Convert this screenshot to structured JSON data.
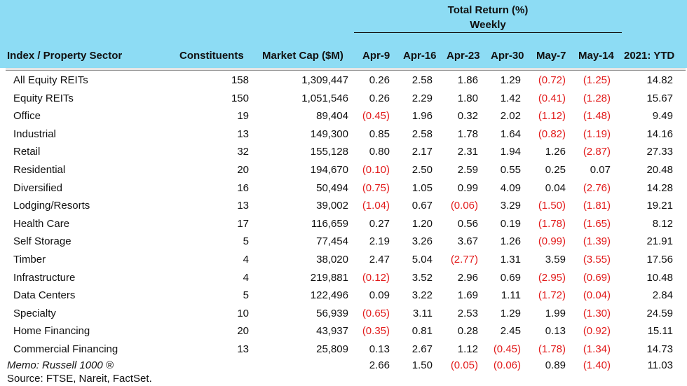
{
  "header": {
    "group_title": "Total Return (%)",
    "group_subtitle": "Weekly",
    "columns": [
      "Index / Property Sector",
      "Constituents",
      "Market Cap ($M)",
      "Apr-9",
      "Apr-16",
      "Apr-23",
      "Apr-30",
      "May-7",
      "May-14",
      "2021: YTD"
    ]
  },
  "rows": [
    {
      "label": "All Equity REITs",
      "constituents": "158",
      "mcap": "1,309,447",
      "v": [
        "0.26",
        "2.58",
        "1.86",
        "1.29",
        "(0.72)",
        "(1.25)",
        "14.82"
      ]
    },
    {
      "label": "Equity REITs",
      "constituents": "150",
      "mcap": "1,051,546",
      "v": [
        "0.26",
        "2.29",
        "1.80",
        "1.42",
        "(0.41)",
        "(1.28)",
        "15.67"
      ]
    },
    {
      "label": "Office",
      "constituents": "19",
      "mcap": "89,404",
      "v": [
        "(0.45)",
        "1.96",
        "0.32",
        "2.02",
        "(1.12)",
        "(1.48)",
        "9.49"
      ]
    },
    {
      "label": "Industrial",
      "constituents": "13",
      "mcap": "149,300",
      "v": [
        "0.85",
        "2.58",
        "1.78",
        "1.64",
        "(0.82)",
        "(1.19)",
        "14.16"
      ]
    },
    {
      "label": "Retail",
      "constituents": "32",
      "mcap": "155,128",
      "v": [
        "0.80",
        "2.17",
        "2.31",
        "1.94",
        "1.26",
        "(2.87)",
        "27.33"
      ]
    },
    {
      "label": "Residential",
      "constituents": "20",
      "mcap": "194,670",
      "v": [
        "(0.10)",
        "2.50",
        "2.59",
        "0.55",
        "0.25",
        "0.07",
        "20.48"
      ]
    },
    {
      "label": "Diversified",
      "constituents": "16",
      "mcap": "50,494",
      "v": [
        "(0.75)",
        "1.05",
        "0.99",
        "4.09",
        "0.04",
        "(2.76)",
        "14.28"
      ]
    },
    {
      "label": "Lodging/Resorts",
      "constituents": "13",
      "mcap": "39,002",
      "v": [
        "(1.04)",
        "0.67",
        "(0.06)",
        "3.29",
        "(1.50)",
        "(1.81)",
        "19.21"
      ]
    },
    {
      "label": "Health Care",
      "constituents": "17",
      "mcap": "116,659",
      "v": [
        "0.27",
        "1.20",
        "0.56",
        "0.19",
        "(1.78)",
        "(1.65)",
        "8.12"
      ]
    },
    {
      "label": "Self Storage",
      "constituents": "5",
      "mcap": "77,454",
      "v": [
        "2.19",
        "3.26",
        "3.67",
        "1.26",
        "(0.99)",
        "(1.39)",
        "21.91"
      ]
    },
    {
      "label": "Timber",
      "constituents": "4",
      "mcap": "38,020",
      "v": [
        "2.47",
        "5.04",
        "(2.77)",
        "1.31",
        "3.59",
        "(3.55)",
        "17.56"
      ]
    },
    {
      "label": "Infrastructure",
      "constituents": "4",
      "mcap": "219,881",
      "v": [
        "(0.12)",
        "3.52",
        "2.96",
        "0.69",
        "(2.95)",
        "(0.69)",
        "10.48"
      ]
    },
    {
      "label": "Data Centers",
      "constituents": "5",
      "mcap": "122,496",
      "v": [
        "0.09",
        "3.22",
        "1.69",
        "1.11",
        "(1.72)",
        "(0.04)",
        "2.84"
      ]
    },
    {
      "label": "Specialty",
      "constituents": "10",
      "mcap": "56,939",
      "v": [
        "(0.65)",
        "3.11",
        "2.53",
        "1.29",
        "1.99",
        "(1.30)",
        "24.59"
      ]
    },
    {
      "label": "Home Financing",
      "constituents": "20",
      "mcap": "43,937",
      "v": [
        "(0.35)",
        "0.81",
        "0.28",
        "2.45",
        "0.13",
        "(0.92)",
        "15.11"
      ]
    },
    {
      "label": "Commercial Financing",
      "constituents": "13",
      "mcap": "25,809",
      "v": [
        "0.13",
        "2.67",
        "1.12",
        "(0.45)",
        "(1.78)",
        "(1.34)",
        "14.73"
      ]
    }
  ],
  "memo": {
    "label": "Memo: Russell 1000 ®",
    "v": [
      "2.66",
      "1.50",
      "(0.05)",
      "(0.06)",
      "0.89",
      "(1.40)",
      "11.03"
    ]
  },
  "source": "Source: FTSE, Nareit, FactSet.",
  "colors": {
    "header_bg": "#8ddcf4",
    "negative": "#e21b1b",
    "text": "#111111"
  }
}
